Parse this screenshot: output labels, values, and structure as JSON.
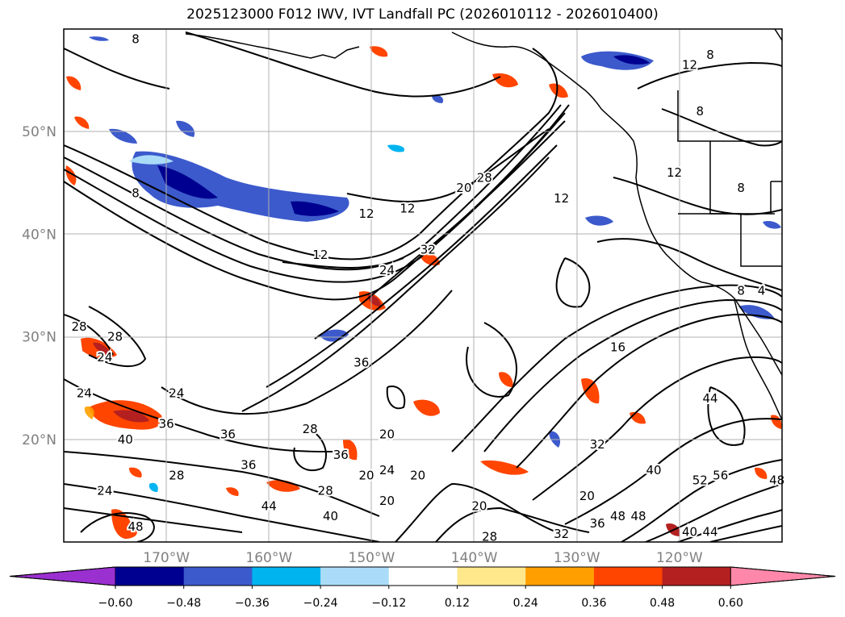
{
  "title": "2025123000 F012 IWV, IVT Landfall PC (2026010112 - 2026010400)",
  "map": {
    "projection": "lat-lon",
    "lon_range": [
      -180,
      -110
    ],
    "lat_range": [
      10,
      60
    ],
    "lat_ticks": [
      {
        "value": 20,
        "label": "20°N"
      },
      {
        "value": 30,
        "label": "30°N"
      },
      {
        "value": 40,
        "label": "40°N"
      },
      {
        "value": 50,
        "label": "50°N"
      }
    ],
    "lon_ticks": [
      {
        "value": -170,
        "label": "170°W"
      },
      {
        "value": -160,
        "label": "160°W"
      },
      {
        "value": -150,
        "label": "150°W"
      },
      {
        "value": -140,
        "label": "140°W"
      },
      {
        "value": -130,
        "label": "130°W"
      },
      {
        "value": -120,
        "label": "120°W"
      }
    ],
    "grid": true,
    "iwv_contour_labels": [
      {
        "text": "8",
        "lon": -173,
        "lat": 44
      },
      {
        "text": "8",
        "lon": -173,
        "lat": 59
      },
      {
        "text": "8",
        "lon": -117,
        "lat": 57.5
      },
      {
        "text": "8",
        "lon": -118,
        "lat": 52
      },
      {
        "text": "8",
        "lon": -114,
        "lat": 44.5
      },
      {
        "text": "8",
        "lon": -114,
        "lat": 34.5
      },
      {
        "text": "4",
        "lon": -112,
        "lat": 34.5
      },
      {
        "text": "12",
        "lon": -119,
        "lat": 56.5
      },
      {
        "text": "12",
        "lon": -120.5,
        "lat": 46
      },
      {
        "text": "12",
        "lon": -150.5,
        "lat": 42
      },
      {
        "text": "12",
        "lon": -146.5,
        "lat": 42.5
      },
      {
        "text": "12",
        "lon": -155,
        "lat": 38
      },
      {
        "text": "12",
        "lon": -131.5,
        "lat": 43.5
      },
      {
        "text": "16",
        "lon": -126,
        "lat": 29
      },
      {
        "text": "20",
        "lon": -141,
        "lat": 44.5
      },
      {
        "text": "28",
        "lon": -139,
        "lat": 45.5
      },
      {
        "text": "24",
        "lon": -148.5,
        "lat": 36.5
      },
      {
        "text": "32",
        "lon": -144.5,
        "lat": 38.5
      },
      {
        "text": "28",
        "lon": -178.5,
        "lat": 31
      },
      {
        "text": "28",
        "lon": -175,
        "lat": 30
      },
      {
        "text": "24",
        "lon": -176,
        "lat": 28
      },
      {
        "text": "24",
        "lon": -178,
        "lat": 24.5
      },
      {
        "text": "24",
        "lon": -169,
        "lat": 24.5
      },
      {
        "text": "36",
        "lon": -151,
        "lat": 27.5
      },
      {
        "text": "36",
        "lon": -170,
        "lat": 21.5
      },
      {
        "text": "40",
        "lon": -174,
        "lat": 20
      },
      {
        "text": "36",
        "lon": -164,
        "lat": 20.5
      },
      {
        "text": "28",
        "lon": -156,
        "lat": 21
      },
      {
        "text": "36",
        "lon": -153,
        "lat": 18.5
      },
      {
        "text": "20",
        "lon": -148.5,
        "lat": 20.5
      },
      {
        "text": "36",
        "lon": -162,
        "lat": 17.5
      },
      {
        "text": "28",
        "lon": -169,
        "lat": 16.5
      },
      {
        "text": "24",
        "lon": -176,
        "lat": 15
      },
      {
        "text": "20",
        "lon": -150.5,
        "lat": 16.5
      },
      {
        "text": "24",
        "lon": -148.5,
        "lat": 17
      },
      {
        "text": "20",
        "lon": -145.5,
        "lat": 16.5
      },
      {
        "text": "20",
        "lon": -148.5,
        "lat": 14
      },
      {
        "text": "28",
        "lon": -154.5,
        "lat": 15
      },
      {
        "text": "44",
        "lon": -160,
        "lat": 13.5
      },
      {
        "text": "40",
        "lon": -154,
        "lat": 12.5
      },
      {
        "text": "48",
        "lon": -173,
        "lat": 11.5
      },
      {
        "text": "32",
        "lon": -128,
        "lat": 19.5
      },
      {
        "text": "20",
        "lon": -129,
        "lat": 14.5
      },
      {
        "text": "20",
        "lon": -139.5,
        "lat": 13.5
      },
      {
        "text": "28",
        "lon": -138.5,
        "lat": 10.5
      },
      {
        "text": "32",
        "lon": -131.5,
        "lat": 10.8
      },
      {
        "text": "36",
        "lon": -128,
        "lat": 11.8
      },
      {
        "text": "48",
        "lon": -126,
        "lat": 12.5
      },
      {
        "text": "48",
        "lon": -124,
        "lat": 12.5
      },
      {
        "text": "40",
        "lon": -119,
        "lat": 11
      },
      {
        "text": "44",
        "lon": -117,
        "lat": 11
      },
      {
        "text": "44",
        "lon": -117,
        "lat": 24
      },
      {
        "text": "52",
        "lon": -118,
        "lat": 16
      },
      {
        "text": "56",
        "lon": -116,
        "lat": 16.5
      },
      {
        "text": "48",
        "lon": -110.5,
        "lat": 16
      },
      {
        "text": "40",
        "lon": -122.5,
        "lat": 17
      }
    ]
  },
  "colorbar": {
    "ticks": [
      "−0.60",
      "−0.48",
      "−0.36",
      "−0.24",
      "−0.12",
      "0.12",
      "0.24",
      "0.36",
      "0.48",
      "0.60"
    ],
    "colors": [
      "#9b30d0",
      "#000090",
      "#3c5acc",
      "#00b4f0",
      "#aadcf8",
      "#ffffff",
      "#ffe88c",
      "#ffa000",
      "#ff4500",
      "#b42020",
      "#ff88aa"
    ]
  }
}
